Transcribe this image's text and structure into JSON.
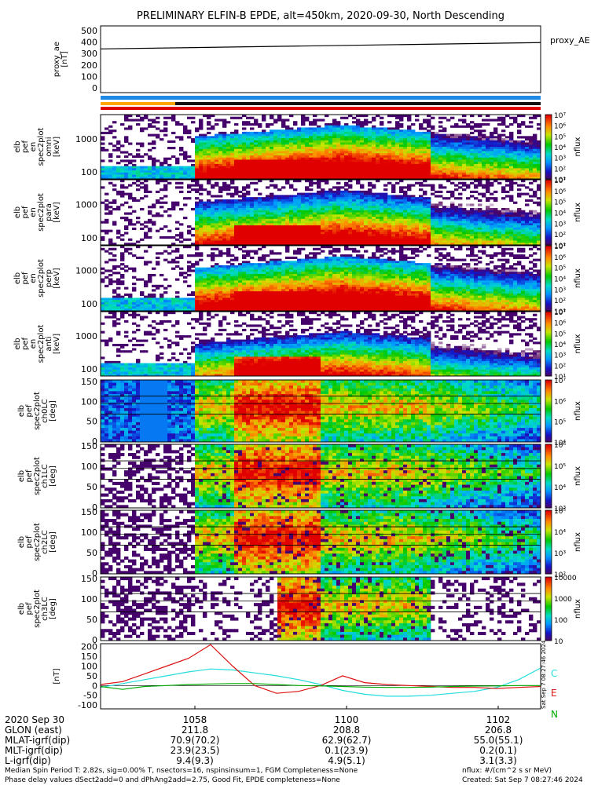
{
  "chart_data": {
    "type": "heatmap",
    "title": "PRELIMINARY ELFIN-B EPDE, alt=450km, 2020-09-30, North Descending",
    "x_axis": {
      "date_label": "2020 Sep 30",
      "ticks": [
        "1058",
        "1100",
        "1102"
      ],
      "rows": [
        {
          "label": "GLON (east)",
          "values": [
            "211.8",
            "208.8",
            "206.8"
          ]
        },
        {
          "label": "MLAT-igrf(dip)",
          "values": [
            "70.9(70.2)",
            "62.9(62.7)",
            "55.0(55.1)"
          ]
        },
        {
          "label": "MLT-igrf(dip)",
          "values": [
            "23.9(23.5)",
            "0.1(23.9)",
            "0.2(0.1)"
          ]
        },
        {
          "label": "L-igrf(dip)",
          "values": [
            "9.4(9.3)",
            "4.9(5.1)",
            "3.1(3.3)"
          ]
        }
      ]
    },
    "panels": [
      {
        "type": "line",
        "ylabel": [
          "proxy_ae",
          "[nT]"
        ],
        "yticks": [
          "500",
          "400",
          "300",
          "200",
          "100",
          "0"
        ],
        "ylim": [
          -40,
          540
        ],
        "legend": "proxy_AE",
        "x": [
          0,
          1
        ],
        "y": [
          340,
          395
        ]
      },
      {
        "type": "heatmap",
        "ylabel": [
          "elb",
          "pef",
          "en",
          "spec2plot",
          "omni",
          "[keV]"
        ],
        "yticks": [
          "1000",
          "100"
        ],
        "clabel": "nflux",
        "cticks": [
          "10⁷",
          "10⁶",
          "10⁵",
          "10⁴",
          "10³",
          "10²",
          "10¹"
        ]
      },
      {
        "type": "heatmap",
        "ylabel": [
          "elb",
          "pef",
          "en",
          "spec2plot",
          "para",
          "[keV]"
        ],
        "yticks": [
          "1000",
          "100"
        ],
        "clabel": "nflux",
        "cticks": [
          "10⁷",
          "10⁶",
          "10⁵",
          "10⁴",
          "10³",
          "10²",
          "10¹"
        ]
      },
      {
        "type": "heatmap",
        "ylabel": [
          "elb",
          "pef",
          "en",
          "spec2plot",
          "perp",
          "[keV]"
        ],
        "yticks": [
          "1000",
          "100"
        ],
        "clabel": "nflux",
        "cticks": [
          "10⁷",
          "10⁶",
          "10⁵",
          "10⁴",
          "10³",
          "10²",
          "10¹"
        ]
      },
      {
        "type": "heatmap",
        "ylabel": [
          "elb",
          "pef",
          "en",
          "spec2plot",
          "anti",
          "[keV]"
        ],
        "yticks": [
          "1000",
          "100"
        ],
        "clabel": "nflux",
        "cticks": [
          "10⁷",
          "10⁶",
          "10⁵",
          "10⁴",
          "10³",
          "10²",
          "10¹"
        ]
      },
      {
        "type": "heatmap",
        "ylabel": [
          "elb",
          "pef",
          "spec2plot",
          "ch0LC",
          "[deg]"
        ],
        "yticks": [
          "150",
          "100",
          "50",
          "0"
        ],
        "clabel": "nflux",
        "cticks": [
          "10⁷",
          "10⁶",
          "10⁵",
          "10⁴"
        ]
      },
      {
        "type": "heatmap",
        "ylabel": [
          "elb",
          "pef",
          "spec2plot",
          "ch1LC",
          "[deg]"
        ],
        "yticks": [
          "150",
          "100",
          "50",
          "0"
        ],
        "clabel": "nflux",
        "cticks": [
          "10⁶",
          "10⁵",
          "10⁴",
          "10³"
        ]
      },
      {
        "type": "heatmap",
        "ylabel": [
          "elb",
          "pef",
          "spec2plot",
          "ch2LC",
          "[deg]"
        ],
        "yticks": [
          "150",
          "100",
          "50",
          "0"
        ],
        "clabel": "nflux",
        "cticks": [
          "10⁵",
          "10⁴",
          "10³",
          "10²"
        ]
      },
      {
        "type": "heatmap",
        "ylabel": [
          "elb",
          "pef",
          "spec2plot",
          "ch3LC",
          "[deg]"
        ],
        "yticks": [
          "150",
          "100",
          "50",
          "0"
        ],
        "clabel": "nflux",
        "cticks": [
          "10000",
          "1000",
          "100",
          "10"
        ]
      },
      {
        "type": "line",
        "ylabel": [
          "[nT]"
        ],
        "yticks": [
          "200",
          "150",
          "100",
          "50",
          "0",
          "-50",
          "-100"
        ],
        "ylim": [
          -120,
          215
        ],
        "x": [
          0,
          0.05,
          0.1,
          0.15,
          0.2,
          0.25,
          0.3,
          0.35,
          0.4,
          0.45,
          0.5,
          0.55,
          0.6,
          0.65,
          0.7,
          0.75,
          0.8,
          0.85,
          0.9,
          0.95,
          1.0
        ],
        "series": [
          {
            "name": "C",
            "color": "#22dddd",
            "values": [
              -10,
              10,
              30,
              50,
              70,
              85,
              80,
              65,
              50,
              30,
              5,
              -25,
              -45,
              -55,
              -55,
              -50,
              -40,
              -30,
              -10,
              30,
              90
            ]
          },
          {
            "name": "E",
            "color": "#dd1111",
            "values": [
              5,
              20,
              60,
              100,
              140,
              210,
              100,
              0,
              -40,
              -30,
              0,
              50,
              15,
              5,
              0,
              -5,
              -10,
              -10,
              -15,
              -10,
              -5
            ]
          },
          {
            "name": "N",
            "color": "#00aa00",
            "values": [
              -5,
              -20,
              -5,
              0,
              5,
              8,
              10,
              10,
              5,
              0,
              -2,
              -5,
              -8,
              -10,
              -10,
              -8,
              -5,
              -3,
              -2,
              0,
              0
            ]
          }
        ]
      }
    ]
  },
  "side_text": "Sat Sep  7 08:27:46 2024",
  "footer": {
    "line1": "Median Spin Period T: 2.82s, sig=0.00% T, nsectors=16, nspinsinsum=1, FGM Completeness=None",
    "line2": "Phase delay values dSect2add=0 and dPhAng2add=2.75, Good Fit, EPDE completeness=None",
    "units": "nflux: #/(cm^2 s sr MeV)",
    "created": "Created: Sat Sep  7 08:27:46 2024"
  }
}
